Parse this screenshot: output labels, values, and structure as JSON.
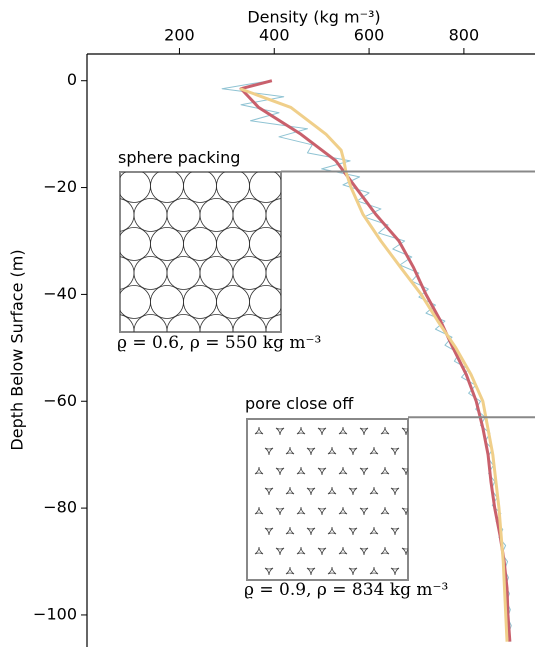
{
  "chart_data": {
    "type": "line",
    "xlabel": "Density (kg m⁻³)",
    "ylabel": "Depth Below Surface (m)",
    "xlim": [
      5,
      950
    ],
    "ylim": [
      -106,
      5
    ],
    "xticks": [
      200,
      400,
      600,
      800
    ],
    "yticks": [
      0,
      {
        "value": -20,
        "label": "−20"
      },
      {
        "value": -40,
        "label": "−40"
      },
      {
        "value": -60,
        "label": "−60"
      },
      {
        "value": -80,
        "label": "−80"
      },
      {
        "value": -100,
        "label": "−100"
      }
    ],
    "series": [
      {
        "color": "#8fc3d3",
        "width": 1,
        "x": [
          390,
          290,
          420,
          330,
          410,
          350,
          470,
          410,
          480,
          470,
          560,
          500,
          580,
          545,
          600,
          575,
          625,
          590,
          640,
          620,
          675,
          650,
          690,
          665,
          705,
          690,
          725,
          705,
          740,
          720,
          760,
          740,
          775,
          760,
          790,
          780,
          810,
          795,
          825,
          810,
          835,
          825,
          845,
          835,
          855,
          845,
          860,
          850,
          862,
          852,
          865,
          858,
          870,
          860,
          878,
          868,
          882,
          874,
          888,
          880,
          892,
          886,
          894,
          888,
          896,
          890,
          898,
          892,
          900,
          894,
          899
        ],
        "values": [
          0,
          -1.5,
          -3,
          -4.5,
          -6,
          -7.5,
          -9,
          -10.5,
          -12,
          -13.5,
          -15,
          -16.5,
          -18,
          -19.5,
          -21,
          -22.5,
          -24,
          -25.5,
          -27,
          -28.5,
          -30,
          -31.5,
          -33,
          -34.5,
          -36,
          -37.5,
          -39,
          -40.5,
          -42,
          -43.5,
          -45,
          -46.5,
          -48,
          -49.5,
          -51,
          -52.5,
          -54,
          -55.5,
          -57,
          -58.5,
          -60,
          -61.5,
          -63,
          -64.5,
          -66,
          -67.5,
          -69,
          -70.5,
          -72,
          -73.5,
          -75,
          -76.5,
          -78,
          -79.5,
          -81,
          -82.5,
          -84,
          -85.5,
          -87,
          -88.5,
          -90,
          -91.5,
          -93,
          -94.5,
          -96,
          -97.5,
          -99,
          -100.5,
          -102,
          -103.5,
          -105
        ]
      },
      {
        "color": "#c9606c",
        "width": 3,
        "x": [
          395,
          330,
          367,
          456,
          530,
          572,
          614,
          663,
          694,
          720,
          751,
          777,
          805,
          826,
          840,
          851,
          857,
          865,
          876,
          885,
          891,
          893,
          897
        ],
        "values": [
          0,
          -1.5,
          -5,
          -10,
          -15,
          -20,
          -25,
          -30,
          -35,
          -40,
          -45,
          -50,
          -55,
          -60,
          -65,
          -70,
          -75,
          -80,
          -85,
          -90,
          -95,
          -100,
          -105
        ]
      },
      {
        "color": "#f0cf8a",
        "width": 3,
        "x": [
          328,
          435,
          509,
          541,
          547,
          551,
          562,
          587,
          625,
          667,
          710,
          745,
          783,
          815,
          840,
          861,
          874,
          883,
          891
        ],
        "values": [
          -1.5,
          -5,
          -10,
          -13,
          -15,
          -17,
          -20,
          -25,
          -30,
          -35,
          -40,
          -45,
          -50,
          -55,
          -60,
          -70,
          -80,
          -90,
          -105
        ]
      }
    ],
    "insets": [
      {
        "label": "sphere packing",
        "caption": "ϱ = 0.6,  ρ = 550 kg m⁻³",
        "depth": -17
      },
      {
        "label": "pore close off",
        "caption": "ϱ = 0.9,  ρ = 834 kg m⁻³",
        "depth": -63
      }
    ]
  }
}
